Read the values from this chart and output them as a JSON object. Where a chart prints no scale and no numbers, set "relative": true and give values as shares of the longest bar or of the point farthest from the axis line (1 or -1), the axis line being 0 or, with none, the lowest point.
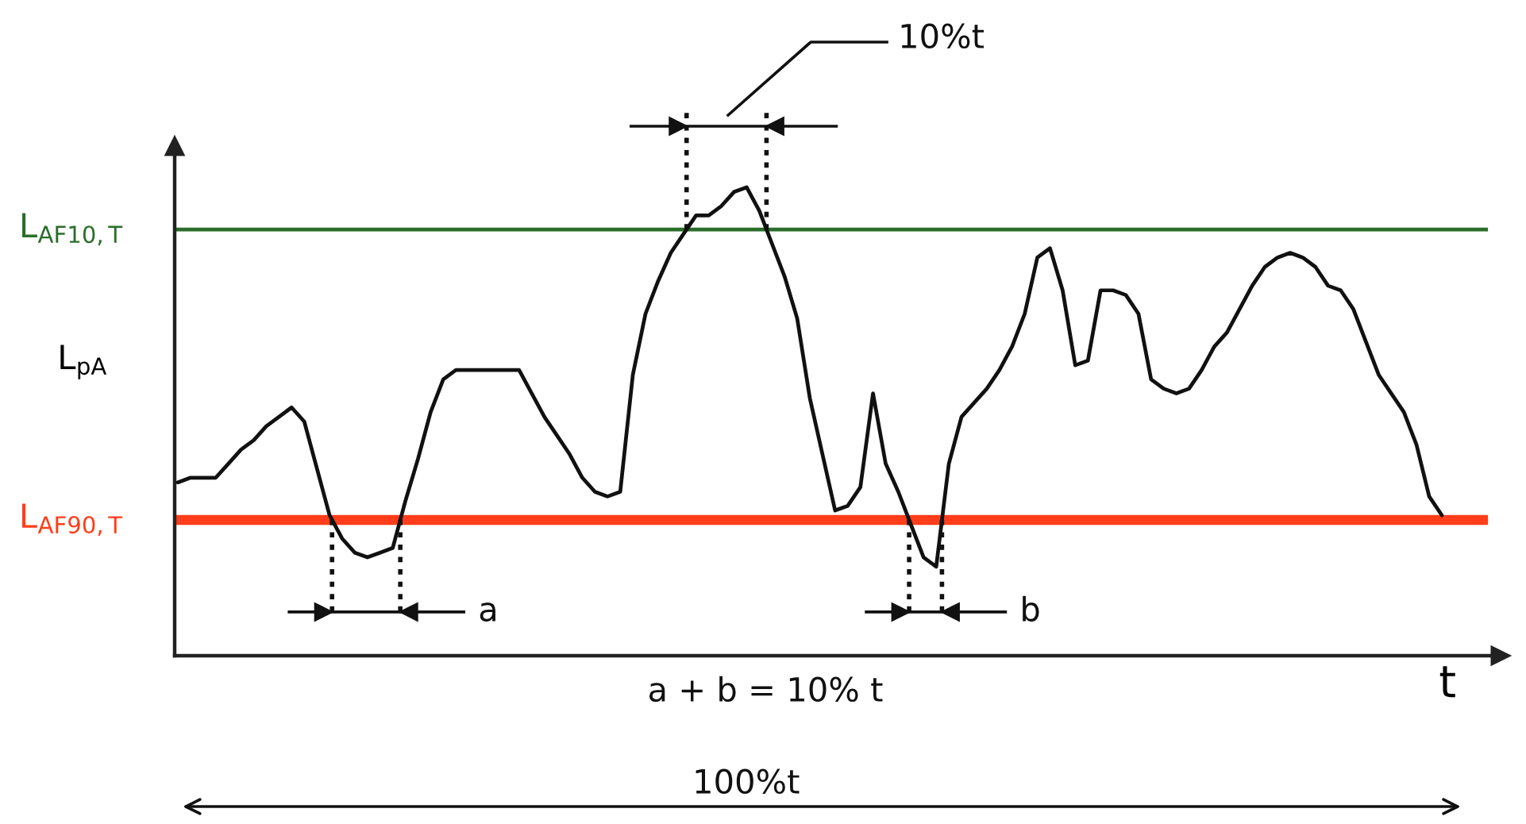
{
  "chart_data": {
    "type": "line",
    "relative": true,
    "ylabel": "L$_{pA}$",
    "xlabel": "t",
    "line_style": "solid",
    "categories": [
      null,
      null,
      null,
      null,
      null,
      null,
      null,
      null,
      null,
      null,
      null,
      null,
      null,
      null,
      null,
      null,
      null,
      null,
      null,
      null,
      null,
      null,
      null,
      null,
      null,
      null,
      null,
      null,
      null,
      null,
      null,
      null,
      null,
      null,
      null,
      null,
      null,
      null,
      null,
      null,
      null,
      null,
      null,
      null,
      null,
      null,
      null,
      null,
      null,
      null,
      null,
      null,
      null,
      null,
      null,
      null,
      null,
      null,
      null,
      null,
      null,
      null,
      null,
      null,
      null,
      null,
      null,
      null,
      null,
      null,
      null,
      null,
      null,
      null,
      null,
      null,
      null,
      null,
      null,
      null,
      null,
      null,
      null,
      null,
      null,
      null,
      null,
      null,
      null,
      null,
      null,
      null,
      null,
      null,
      null,
      null,
      null,
      null,
      null,
      null,
      null
    ],
    "series": [
      {
        "color": "#111111",
        "values": [
          0.37,
          0.38,
          0.38,
          0.38,
          0.41,
          0.44,
          0.46,
          0.49,
          0.51,
          0.53,
          0.5,
          0.4,
          0.3,
          0.25,
          0.22,
          0.21,
          0.22,
          0.23,
          0.33,
          0.42,
          0.52,
          0.59,
          0.61,
          0.61,
          0.61,
          0.61,
          0.61,
          0.61,
          0.56,
          0.51,
          0.47,
          0.43,
          0.38,
          0.35,
          0.34,
          0.35,
          0.6,
          0.73,
          0.8,
          0.86,
          0.9,
          0.94,
          0.94,
          0.96,
          0.99,
          1.0,
          0.95,
          0.88,
          0.81,
          0.72,
          0.55,
          0.43,
          0.31,
          0.32,
          0.36,
          0.56,
          0.41,
          0.35,
          0.28,
          0.21,
          0.19,
          0.41,
          0.51,
          0.54,
          0.57,
          0.61,
          0.66,
          0.73,
          0.85,
          0.87,
          0.78,
          0.62,
          0.63,
          0.78,
          0.78,
          0.77,
          0.73,
          0.59,
          0.57,
          0.56,
          0.57,
          0.61,
          0.66,
          0.69,
          0.74,
          0.79,
          0.83,
          0.85,
          0.86,
          0.85,
          0.83,
          0.79,
          0.78,
          0.74,
          0.67,
          0.6,
          0.56,
          0.52,
          0.45,
          0.34,
          0.3
        ]
      }
    ],
    "ref_lines": [
      {
        "axis": "y",
        "value": 0.91,
        "label": "L$_{AF10,T}$",
        "color": "#2a6e2a"
      },
      {
        "axis": "y",
        "value": 0.29,
        "label": "L$_{AF90,T}$",
        "color": "#ff3d1a"
      }
    ],
    "annotations": [
      "10%t",
      "a",
      "b",
      "a + b = 10% t",
      "100%t"
    ]
  }
}
